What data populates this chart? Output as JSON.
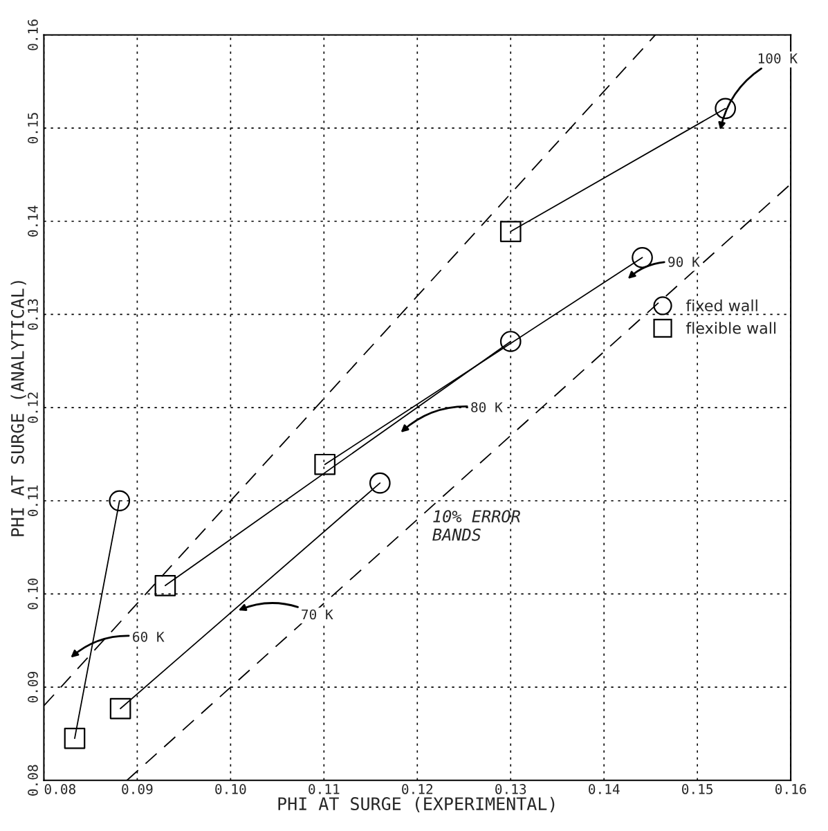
{
  "chart_data": {
    "type": "scatter",
    "xlabel": "PHI AT SURGE (EXPERIMENTAL)",
    "ylabel": "PHI AT SURGE (ANALYTICAL)",
    "xlim": [
      0.08,
      0.16
    ],
    "ylim": [
      0.08,
      0.16
    ],
    "xticks": [
      0.08,
      0.09,
      {
        "value": 0.1,
        "label": "0.10"
      },
      0.11,
      0.12,
      0.13,
      0.14,
      0.15,
      0.16
    ],
    "yticks": [
      0.08,
      0.09,
      {
        "value": 0.1,
        "label": "0.10"
      },
      0.11,
      0.12,
      0.13,
      0.14,
      0.15,
      0.16
    ],
    "grid": true,
    "legend": "right",
    "series": [
      {
        "type": "line",
        "color": "#000000",
        "line_style": "dashed",
        "marker": "none",
        "x": [
          0.08,
          0.1455
        ],
        "values": [
          0.088,
          0.16
        ]
      },
      {
        "type": "line",
        "color": "#000000",
        "line_style": "dashed",
        "marker": "none",
        "x": [
          0.0889,
          0.16
        ],
        "values": [
          0.08,
          0.144
        ]
      },
      {
        "type": "line",
        "color": "#000000",
        "line_style": "solid",
        "marker": "none",
        "x": [
          0.153,
          0.13
        ],
        "values": [
          0.1521,
          0.1389
        ]
      },
      {
        "type": "line",
        "color": "#000000",
        "line_style": "solid",
        "marker": "none",
        "x": [
          0.1441,
          0.1101
        ],
        "values": [
          0.1361,
          0.1139
        ]
      },
      {
        "type": "line",
        "color": "#000000",
        "line_style": "solid",
        "marker": "none",
        "x": [
          0.13,
          0.093
        ],
        "values": [
          0.1271,
          0.1009
        ]
      },
      {
        "type": "line",
        "color": "#000000",
        "line_style": "solid",
        "marker": "none",
        "x": [
          0.116,
          0.0882
        ],
        "values": [
          0.1119,
          0.0877
        ]
      },
      {
        "type": "line",
        "color": "#000000",
        "line_style": "solid",
        "marker": "none",
        "x": [
          0.0881,
          0.0833
        ],
        "values": [
          0.11,
          0.0845
        ]
      },
      {
        "name": "fixed wall",
        "color": "#000000",
        "marker": "circle",
        "x": [
          0.153,
          0.1441,
          0.13,
          0.116,
          0.0881
        ],
        "values": [
          0.1521,
          0.1361,
          0.1271,
          0.1119,
          0.11
        ]
      },
      {
        "name": "flexible wall",
        "color": "#000000",
        "marker": "square",
        "x": [
          0.13,
          0.1101,
          0.093,
          0.0882,
          0.0833
        ],
        "values": [
          0.1389,
          0.1139,
          0.1009,
          0.0877,
          0.0845
        ]
      }
    ],
    "annotations": [
      "100 K",
      "90 K",
      "80 K",
      "70 K",
      "60 K",
      "10% ERROR\nBANDS"
    ]
  }
}
